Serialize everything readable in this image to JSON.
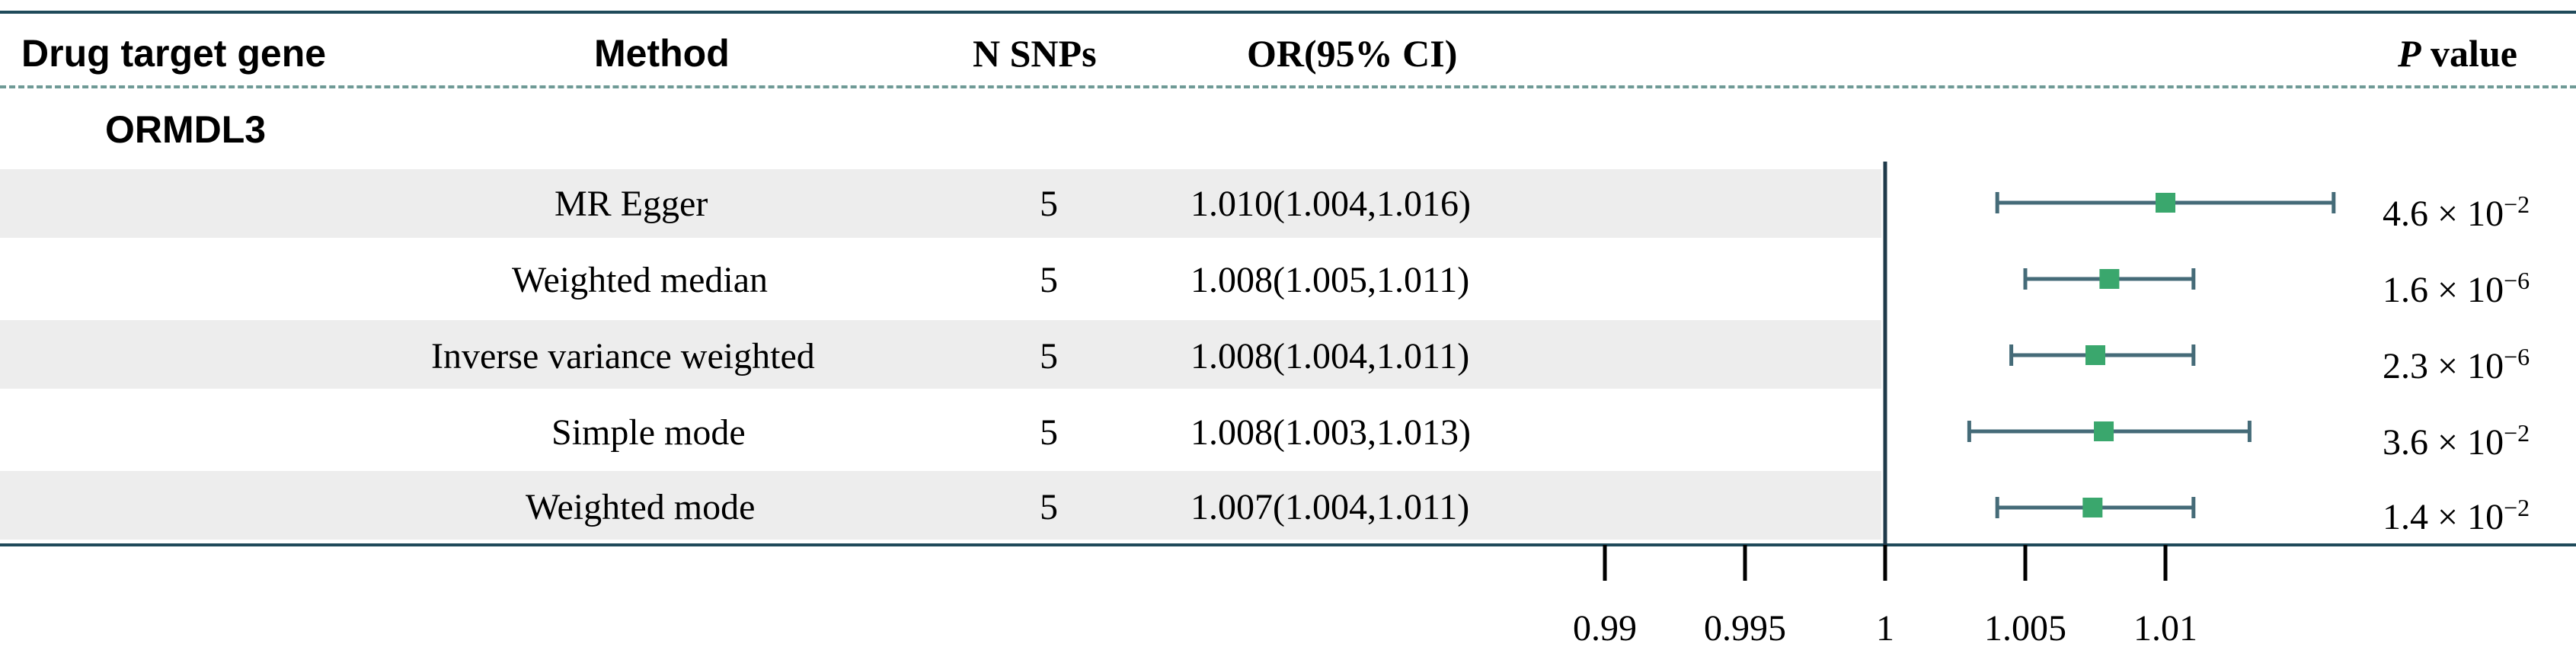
{
  "header": {
    "gene_col": "Drug target gene",
    "method_col": "Method",
    "nsnp_col": "N SNPs",
    "or_col": "OR(95% CI)",
    "p_col_italic": "P",
    "p_col_rest": " value"
  },
  "gene": "ORMDL3",
  "rows": [
    {
      "method": "MR Egger",
      "nsnp": "5",
      "or_ci": "1.010(1.004,1.016)",
      "p_mant": "4.6",
      "p_exp": "−2"
    },
    {
      "method": "Weighted median",
      "nsnp": "5",
      "or_ci": "1.008(1.005,1.011)",
      "p_mant": "1.6",
      "p_exp": "−6"
    },
    {
      "method": "Inverse variance weighted",
      "nsnp": "5",
      "or_ci": "1.008(1.004,1.011)",
      "p_mant": "2.3",
      "p_exp": "−6"
    },
    {
      "method": "Simple mode",
      "nsnp": "5",
      "or_ci": "1.008(1.003,1.013)",
      "p_mant": "3.6",
      "p_exp": "−2"
    },
    {
      "method": "Weighted mode",
      "nsnp": "5",
      "or_ci": "1.007(1.004,1.011)",
      "p_mant": "1.4",
      "p_exp": "−2"
    }
  ],
  "chart_data": {
    "type": "scatter",
    "subtype": "forest-plot",
    "reference_line": 1,
    "xlim": [
      0.99,
      1.01
    ],
    "ticks": [
      0.99,
      0.995,
      1,
      1.005,
      1.01
    ],
    "tick_labels": [
      "0.99",
      "0.995",
      "1",
      "1.005",
      "1.01"
    ],
    "points": [
      {
        "or": 1.01,
        "lo": 1.004,
        "hi": 1.016
      },
      {
        "or": 1.008,
        "lo": 1.005,
        "hi": 1.011
      },
      {
        "or": 1.0075,
        "lo": 1.0045,
        "hi": 1.011
      },
      {
        "or": 1.0078,
        "lo": 1.003,
        "hi": 1.013
      },
      {
        "or": 1.0074,
        "lo": 1.004,
        "hi": 1.011
      }
    ]
  },
  "colors": {
    "point": "#3aa76d",
    "whisker": "#456b78",
    "axis": "#1f3a4a",
    "rule": "#1f4a5a",
    "dashed": "#6f9a96",
    "band": "#ededed"
  }
}
